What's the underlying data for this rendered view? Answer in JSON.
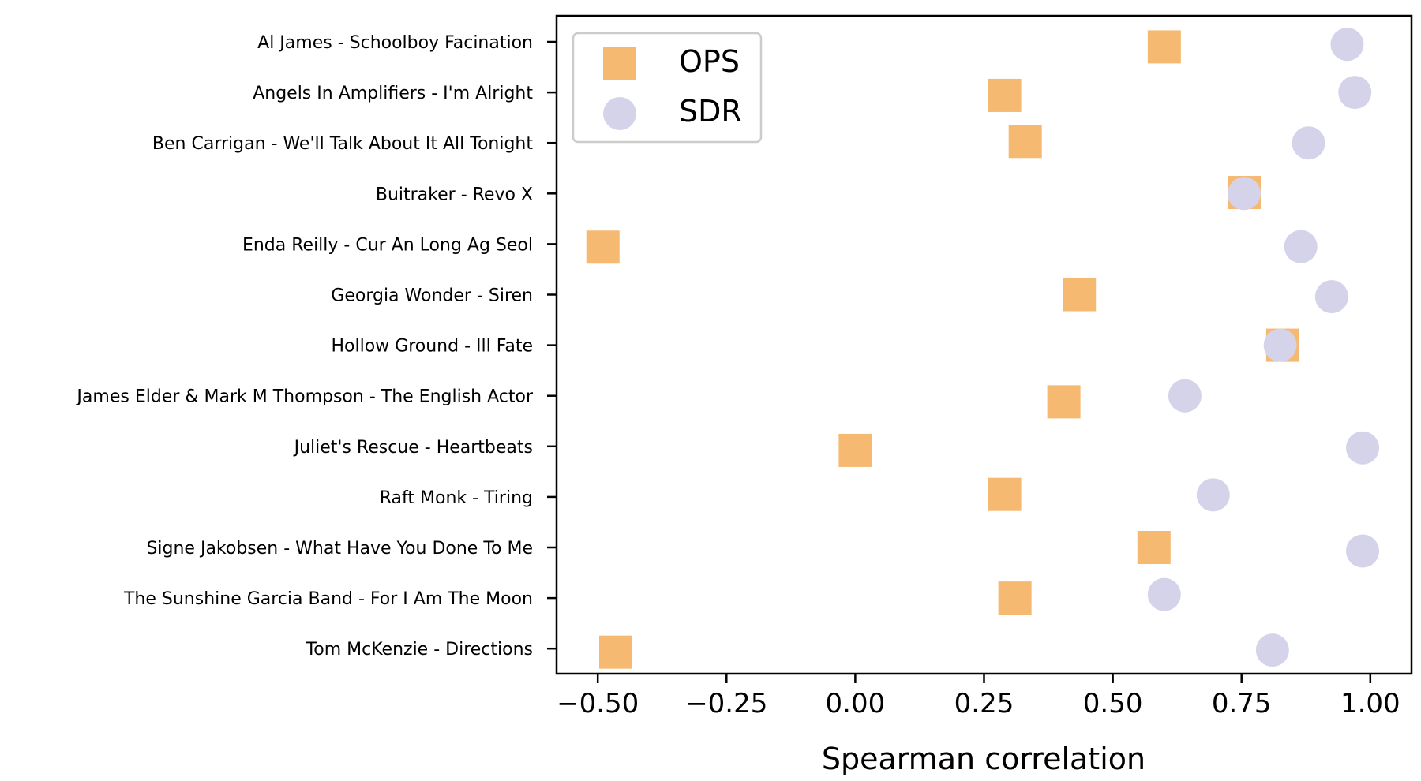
{
  "chart_data": {
    "type": "scatter",
    "xlabel": "Spearman correlation",
    "xlim": [
      -0.58,
      1.08
    ],
    "xticks": [
      -0.5,
      -0.25,
      0.0,
      0.25,
      0.5,
      0.75,
      1.0
    ],
    "xtick_labels": [
      "−0.50",
      "−0.25",
      "0.00",
      "0.25",
      "0.50",
      "0.75",
      "1.00"
    ],
    "categories": [
      "Al James - Schoolboy Facination",
      "Angels In Amplifiers - I'm Alright",
      "Ben Carrigan - We'll Talk About It All Tonight",
      "Buitraker - Revo X",
      "Enda Reilly - Cur An Long Ag Seol",
      "Georgia Wonder - Siren",
      "Hollow Ground - Ill Fate",
      "James Elder & Mark M Thompson - The English Actor",
      "Juliet's Rescue - Heartbeats",
      "Raft Monk - Tiring",
      "Signe Jakobsen - What Have You Done To Me",
      "The Sunshine Garcia Band - For I Am The Moon",
      "Tom McKenzie - Directions"
    ],
    "series": [
      {
        "name": "OPS",
        "marker": "square",
        "color": "#f5b971",
        "values": [
          0.6,
          0.29,
          0.33,
          0.755,
          -0.49,
          0.435,
          0.83,
          0.405,
          0.0,
          0.29,
          0.58,
          0.31,
          -0.465
        ],
        "y_offsets": [
          0.1,
          0.06,
          -0.03,
          -0.02,
          0.06,
          0.0,
          0.0,
          0.12,
          0.08,
          -0.05,
          0.0,
          0.0,
          0.07
        ]
      },
      {
        "name": "SDR",
        "marker": "circle",
        "color": "#d4d3ea",
        "values": [
          0.955,
          0.97,
          0.88,
          0.755,
          0.865,
          0.925,
          0.825,
          0.64,
          0.985,
          0.695,
          0.985,
          0.6,
          0.81
        ],
        "y_offsets": [
          0.05,
          0.0,
          0.0,
          0.0,
          0.05,
          0.04,
          0.0,
          0.0,
          0.03,
          -0.04,
          0.07,
          -0.07,
          0.03
        ]
      }
    ],
    "legend": {
      "position": "top-left",
      "entries": [
        "OPS",
        "SDR"
      ]
    },
    "grid": false
  }
}
